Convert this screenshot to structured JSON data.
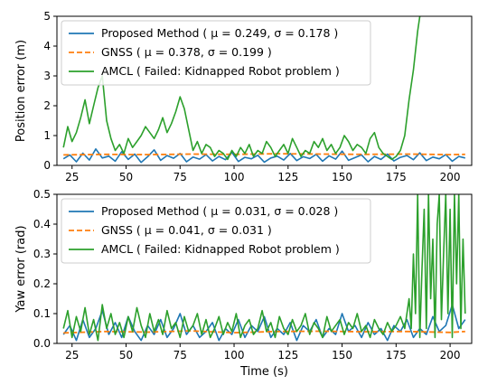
{
  "chart_data": [
    {
      "type": "line",
      "ylabel": "Position error (m)",
      "xlabel": "",
      "xlim": [
        18,
        210
      ],
      "ylim": [
        0,
        5
      ],
      "xticks": [
        25,
        50,
        75,
        100,
        125,
        150,
        175,
        200
      ],
      "yticks": [
        0,
        1,
        2,
        3,
        4,
        5
      ],
      "legend_position": "top-left",
      "series": [
        {
          "name": "Proposed Method ( μ = 0.249, σ = 0.178 )",
          "color": "#1f77b4",
          "style": "solid",
          "x": [
            21,
            24,
            27,
            30,
            33,
            36,
            39,
            42,
            45,
            48,
            51,
            54,
            57,
            60,
            63,
            66,
            69,
            72,
            75,
            78,
            81,
            84,
            87,
            90,
            93,
            96,
            99,
            102,
            105,
            108,
            111,
            114,
            117,
            120,
            123,
            126,
            129,
            132,
            135,
            138,
            141,
            144,
            147,
            150,
            153,
            156,
            159,
            162,
            165,
            168,
            171,
            174,
            177,
            180,
            183,
            186,
            189,
            192,
            195,
            198,
            201,
            204,
            207
          ],
          "y": [
            0.22,
            0.35,
            0.12,
            0.41,
            0.18,
            0.55,
            0.25,
            0.31,
            0.14,
            0.46,
            0.2,
            0.38,
            0.1,
            0.29,
            0.52,
            0.17,
            0.33,
            0.24,
            0.4,
            0.12,
            0.28,
            0.21,
            0.36,
            0.15,
            0.3,
            0.19,
            0.44,
            0.13,
            0.27,
            0.22,
            0.34,
            0.11,
            0.25,
            0.31,
            0.18,
            0.4,
            0.16,
            0.29,
            0.23,
            0.37,
            0.14,
            0.32,
            0.21,
            0.48,
            0.17,
            0.26,
            0.35,
            0.12,
            0.3,
            0.2,
            0.38,
            0.15,
            0.27,
            0.33,
            0.19,
            0.42,
            0.16,
            0.28,
            0.22,
            0.36,
            0.14,
            0.3,
            0.25
          ]
        },
        {
          "name": "GNSS ( μ = 0.378, σ = 0.199 )",
          "color": "#ff7f0e",
          "style": "dashed",
          "x": [
            21,
            40,
            60,
            80,
            100,
            120,
            140,
            160,
            180,
            200,
            207
          ],
          "y": [
            0.35,
            0.37,
            0.36,
            0.38,
            0.37,
            0.39,
            0.38,
            0.37,
            0.38,
            0.36,
            0.37
          ]
        },
        {
          "name": "AMCL ( Failed: Kidnapped Robot problem )",
          "color": "#2ca02c",
          "style": "solid",
          "x": [
            21,
            23,
            25,
            27,
            29,
            31,
            33,
            35,
            37,
            39,
            41,
            43,
            45,
            47,
            49,
            51,
            53,
            55,
            57,
            59,
            61,
            63,
            65,
            67,
            69,
            71,
            73,
            75,
            77,
            79,
            81,
            83,
            85,
            87,
            89,
            91,
            93,
            95,
            97,
            99,
            101,
            103,
            105,
            107,
            109,
            111,
            113,
            115,
            117,
            119,
            121,
            123,
            125,
            127,
            129,
            131,
            133,
            135,
            137,
            139,
            141,
            143,
            145,
            147,
            149,
            151,
            153,
            155,
            157,
            159,
            161,
            163,
            165,
            167,
            169,
            171,
            173,
            175,
            177,
            179,
            181,
            183,
            185,
            186
          ],
          "y": [
            0.6,
            1.3,
            0.8,
            1.1,
            1.6,
            2.2,
            1.4,
            2.0,
            2.6,
            3.0,
            1.5,
            0.9,
            0.5,
            0.7,
            0.4,
            0.9,
            0.6,
            0.8,
            1.0,
            1.3,
            1.1,
            0.9,
            1.2,
            1.6,
            1.1,
            1.4,
            1.8,
            2.3,
            1.9,
            1.2,
            0.5,
            0.8,
            0.4,
            0.7,
            0.6,
            0.3,
            0.5,
            0.4,
            0.2,
            0.5,
            0.3,
            0.6,
            0.4,
            0.7,
            0.3,
            0.5,
            0.4,
            0.8,
            0.6,
            0.3,
            0.5,
            0.7,
            0.4,
            0.9,
            0.6,
            0.3,
            0.5,
            0.4,
            0.8,
            0.6,
            0.9,
            0.5,
            0.7,
            0.4,
            0.6,
            1.0,
            0.8,
            0.5,
            0.7,
            0.6,
            0.4,
            0.9,
            1.1,
            0.6,
            0.4,
            0.3,
            0.2,
            0.3,
            0.5,
            1.0,
            2.2,
            3.2,
            4.5,
            5.0
          ]
        }
      ]
    },
    {
      "type": "line",
      "ylabel": "Yaw error (rad)",
      "xlabel": "Time (s)",
      "xlim": [
        18,
        210
      ],
      "ylim": [
        0,
        0.5
      ],
      "xticks": [
        25,
        50,
        75,
        100,
        125,
        150,
        175,
        200
      ],
      "yticks": [
        0.0,
        0.1,
        0.2,
        0.3,
        0.4,
        0.5
      ],
      "legend_position": "top-left",
      "series": [
        {
          "name": "Proposed Method ( μ = 0.031, σ = 0.028 )",
          "color": "#1f77b4",
          "style": "solid",
          "x": [
            21,
            24,
            27,
            30,
            33,
            36,
            39,
            42,
            45,
            48,
            51,
            54,
            57,
            60,
            63,
            66,
            69,
            72,
            75,
            78,
            81,
            84,
            87,
            90,
            93,
            96,
            99,
            102,
            105,
            108,
            111,
            114,
            117,
            120,
            123,
            126,
            129,
            132,
            135,
            138,
            141,
            144,
            147,
            150,
            153,
            156,
            159,
            162,
            165,
            168,
            171,
            174,
            177,
            180,
            183,
            186,
            189,
            192,
            195,
            198,
            201,
            204,
            207
          ],
          "y": [
            0.03,
            0.06,
            0.01,
            0.08,
            0.02,
            0.05,
            0.11,
            0.03,
            0.07,
            0.02,
            0.09,
            0.04,
            0.01,
            0.06,
            0.03,
            0.08,
            0.02,
            0.05,
            0.1,
            0.03,
            0.06,
            0.02,
            0.04,
            0.07,
            0.01,
            0.05,
            0.03,
            0.08,
            0.02,
            0.06,
            0.04,
            0.09,
            0.02,
            0.05,
            0.03,
            0.07,
            0.01,
            0.06,
            0.04,
            0.08,
            0.02,
            0.05,
            0.03,
            0.1,
            0.04,
            0.06,
            0.02,
            0.07,
            0.03,
            0.05,
            0.01,
            0.06,
            0.04,
            0.08,
            0.02,
            0.05,
            0.03,
            0.09,
            0.04,
            0.06,
            0.13,
            0.05,
            0.08
          ]
        },
        {
          "name": "GNSS ( μ = 0.041, σ = 0.031 )",
          "color": "#ff7f0e",
          "style": "dashed",
          "x": [
            21,
            40,
            60,
            80,
            100,
            120,
            140,
            160,
            180,
            200,
            207
          ],
          "y": [
            0.035,
            0.04,
            0.038,
            0.042,
            0.036,
            0.04,
            0.041,
            0.039,
            0.04,
            0.037,
            0.04
          ]
        },
        {
          "name": "AMCL ( Failed: Kidnapped Robot problem )",
          "color": "#2ca02c",
          "style": "solid",
          "x": [
            21,
            23,
            25,
            27,
            29,
            31,
            33,
            35,
            37,
            39,
            41,
            43,
            45,
            47,
            49,
            51,
            53,
            55,
            57,
            59,
            61,
            63,
            65,
            67,
            69,
            71,
            73,
            75,
            77,
            79,
            81,
            83,
            85,
            87,
            89,
            91,
            93,
            95,
            97,
            99,
            101,
            103,
            105,
            107,
            109,
            111,
            113,
            115,
            117,
            119,
            121,
            123,
            125,
            127,
            129,
            131,
            133,
            135,
            137,
            139,
            141,
            143,
            145,
            147,
            149,
            151,
            153,
            155,
            157,
            159,
            161,
            163,
            165,
            167,
            169,
            171,
            173,
            175,
            177,
            179,
            181,
            182,
            183,
            184,
            185,
            186,
            187,
            188,
            189,
            190,
            191,
            192,
            193,
            194,
            195,
            196,
            197,
            198,
            199,
            200,
            201,
            202,
            203,
            204,
            205,
            206,
            207
          ],
          "y": [
            0.05,
            0.11,
            0.02,
            0.09,
            0.04,
            0.12,
            0.03,
            0.08,
            0.01,
            0.13,
            0.05,
            0.1,
            0.03,
            0.07,
            0.02,
            0.09,
            0.04,
            0.12,
            0.06,
            0.02,
            0.1,
            0.04,
            0.08,
            0.03,
            0.11,
            0.05,
            0.07,
            0.02,
            0.09,
            0.04,
            0.06,
            0.1,
            0.03,
            0.08,
            0.02,
            0.05,
            0.09,
            0.03,
            0.07,
            0.04,
            0.1,
            0.02,
            0.06,
            0.08,
            0.03,
            0.05,
            0.11,
            0.04,
            0.07,
            0.02,
            0.09,
            0.05,
            0.03,
            0.08,
            0.04,
            0.06,
            0.1,
            0.03,
            0.07,
            0.05,
            0.02,
            0.09,
            0.04,
            0.06,
            0.08,
            0.03,
            0.07,
            0.05,
            0.1,
            0.04,
            0.06,
            0.02,
            0.08,
            0.05,
            0.03,
            0.07,
            0.04,
            0.06,
            0.09,
            0.05,
            0.15,
            0.05,
            0.3,
            0.1,
            0.5,
            0.02,
            0.25,
            0.45,
            0.05,
            0.5,
            0.15,
            0.35,
            0.02,
            0.4,
            0.5,
            0.08,
            0.3,
            0.5,
            0.1,
            0.45,
            0.02,
            0.5,
            0.2,
            0.5,
            0.05,
            0.35,
            0.1
          ]
        }
      ]
    }
  ]
}
